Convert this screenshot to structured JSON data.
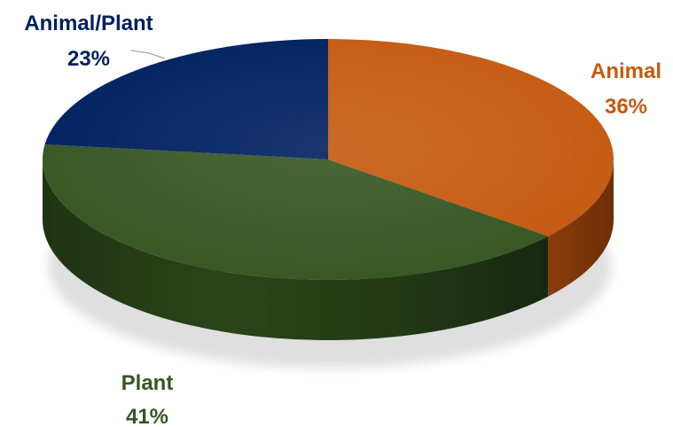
{
  "chart_data": {
    "type": "pie",
    "style": "3d",
    "title": "",
    "categories": [
      "Animal",
      "Plant",
      "Animal/Plant"
    ],
    "values": [
      36,
      41,
      23
    ],
    "unit": "%",
    "labels": [
      {
        "name": "Animal",
        "value_text": "36%"
      },
      {
        "name": "Plant",
        "value_text": "41%"
      },
      {
        "name": "Animal/Plant",
        "value_text": "23%"
      }
    ],
    "legend": "none",
    "colors": {
      "Animal": "#C55A11",
      "Plant": "#375623",
      "Animal/Plant": "#002060"
    }
  }
}
